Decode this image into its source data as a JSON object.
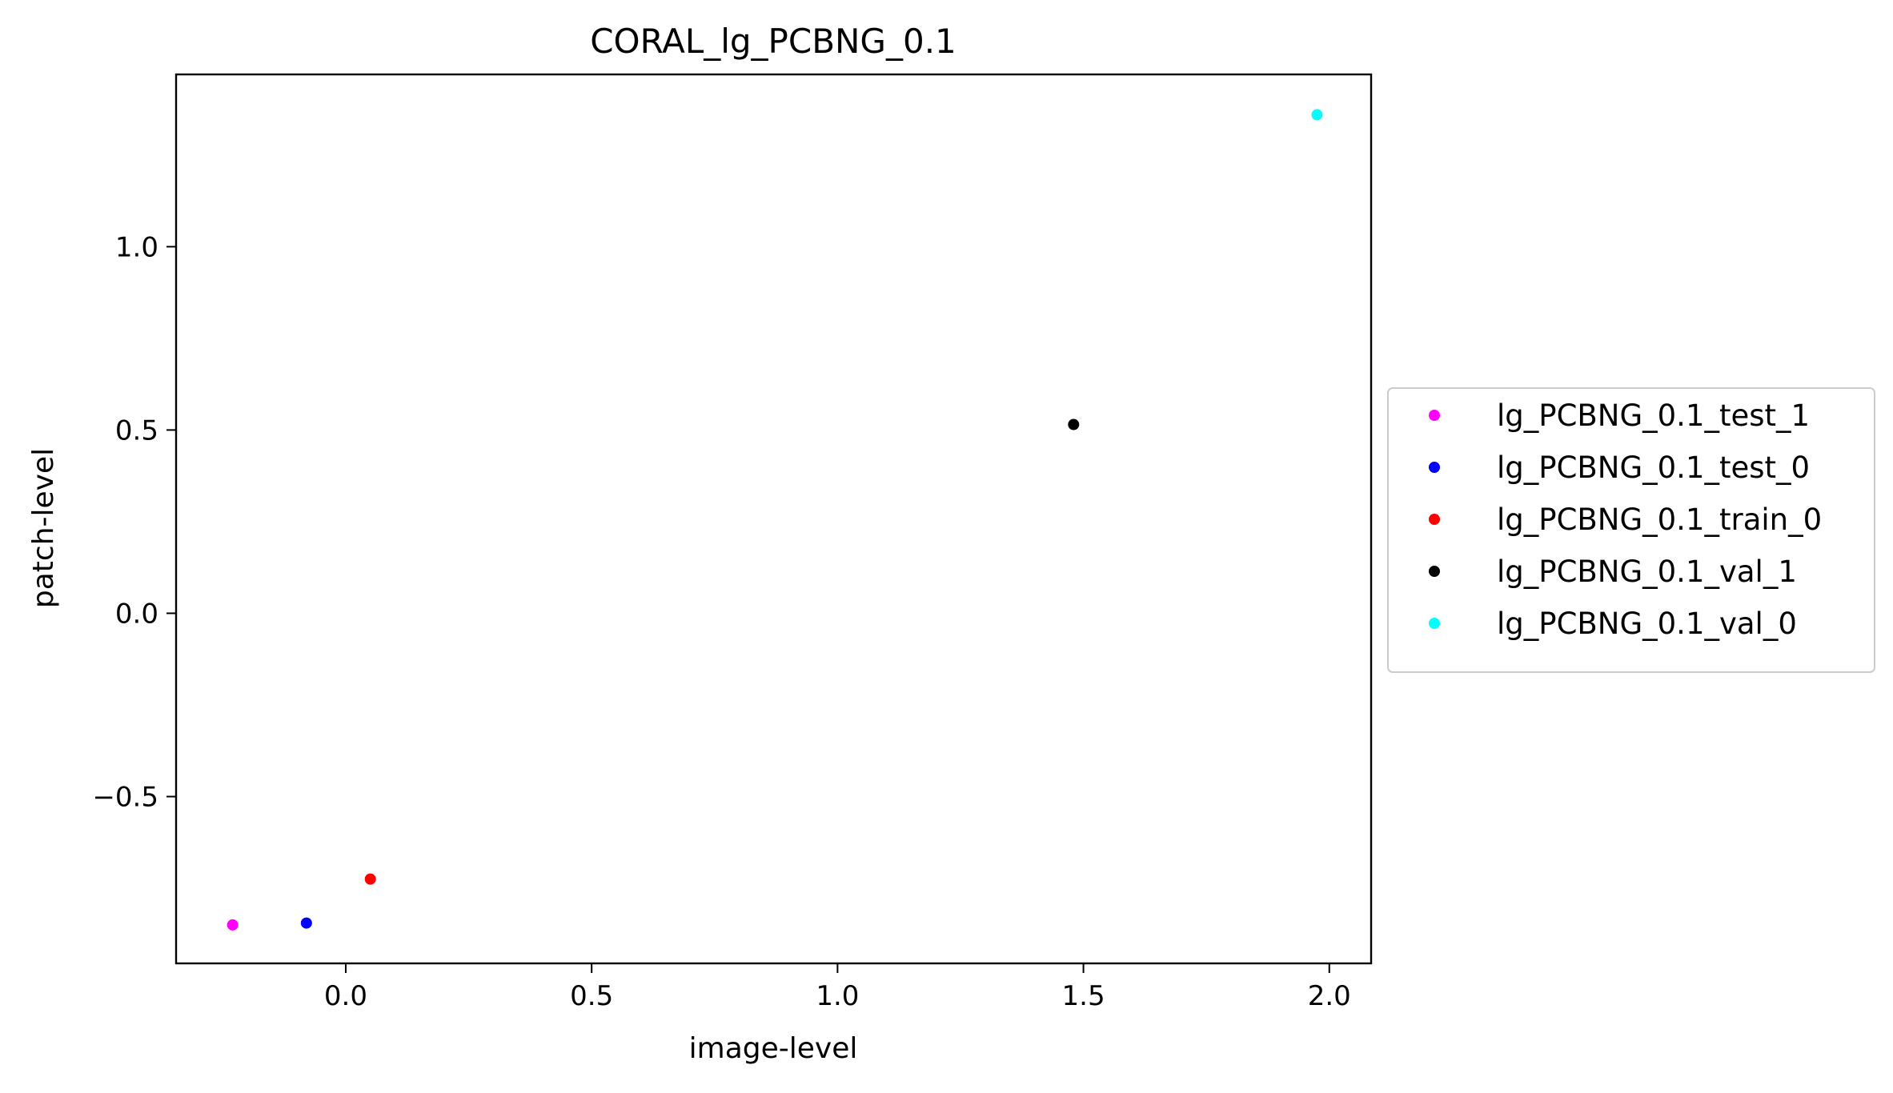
{
  "chart_data": {
    "type": "scatter",
    "title": "CORAL_lg_PCBNG_0.1",
    "xlabel": "image-level",
    "ylabel": "patch-level",
    "xlim": [
      -0.345,
      2.085
    ],
    "ylim": [
      -0.955,
      1.47
    ],
    "xticks": [
      0.0,
      0.5,
      1.0,
      1.5,
      2.0
    ],
    "xtick_labels": [
      "0.0",
      "0.5",
      "1.0",
      "1.5",
      "2.0"
    ],
    "yticks": [
      -0.5,
      0.0,
      0.5,
      1.0
    ],
    "ytick_labels": [
      "−0.5",
      "0.0",
      "0.5",
      "1.0"
    ],
    "grid": false,
    "legend_position": "center-right-outside",
    "series": [
      {
        "name": "lg_PCBNG_0.1_test_1",
        "color": "#ff00ff",
        "x": [
          -0.23
        ],
        "y": [
          -0.85
        ]
      },
      {
        "name": "lg_PCBNG_0.1_test_0",
        "color": "#0000ff",
        "x": [
          -0.08
        ],
        "y": [
          -0.845
        ]
      },
      {
        "name": "lg_PCBNG_0.1_train_0",
        "color": "#ff0000",
        "x": [
          0.05
        ],
        "y": [
          -0.725
        ]
      },
      {
        "name": "lg_PCBNG_0.1_val_1",
        "color": "#000000",
        "x": [
          1.48
        ],
        "y": [
          0.515
        ]
      },
      {
        "name": "lg_PCBNG_0.1_val_0",
        "color": "#00ffff",
        "x": [
          1.975
        ],
        "y": [
          1.36
        ]
      }
    ]
  }
}
